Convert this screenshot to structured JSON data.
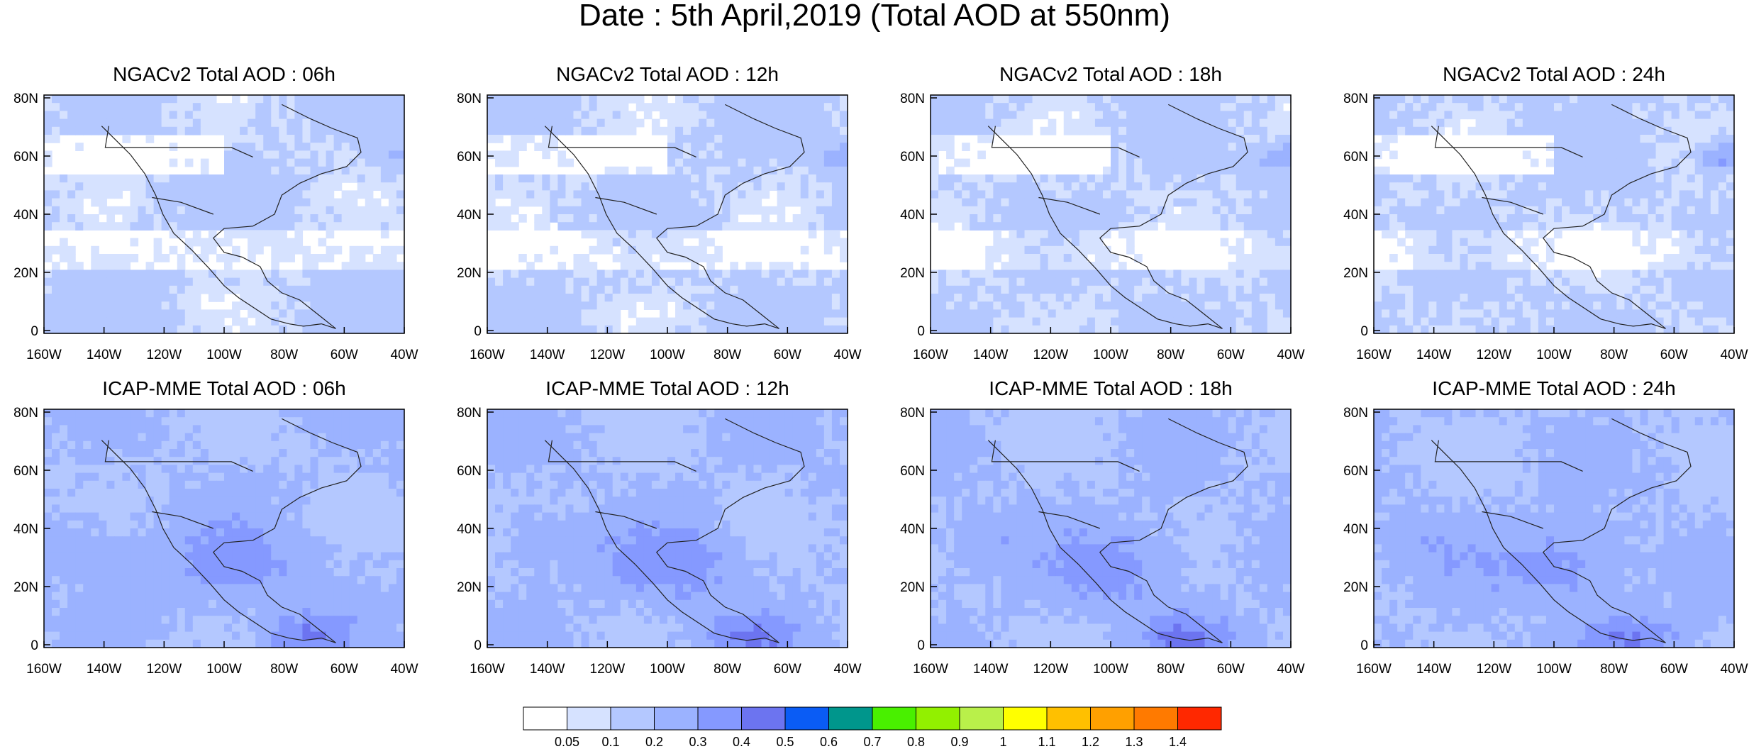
{
  "title": "Date : 5th April,2019 (Total AOD at 550nm)",
  "panels": [
    {
      "title": "NGACv2 Total AOD : 06h",
      "model": "NGACv2",
      "hour": "06h"
    },
    {
      "title": "NGACv2 Total AOD : 12h",
      "model": "NGACv2",
      "hour": "12h"
    },
    {
      "title": "NGACv2 Total AOD : 18h",
      "model": "NGACv2",
      "hour": "18h"
    },
    {
      "title": "NGACv2 Total AOD : 24h",
      "model": "NGACv2",
      "hour": "24h"
    },
    {
      "title": "ICAP-MME Total AOD : 06h",
      "model": "ICAP-MME",
      "hour": "06h"
    },
    {
      "title": "ICAP-MME Total AOD : 12h",
      "model": "ICAP-MME",
      "hour": "12h"
    },
    {
      "title": "ICAP-MME Total AOD : 18h",
      "model": "ICAP-MME",
      "hour": "18h"
    },
    {
      "title": "ICAP-MME Total AOD : 24h",
      "model": "ICAP-MME",
      "hour": "24h"
    }
  ],
  "lat_ticks": [
    "80N",
    "60N",
    "40N",
    "20N",
    "0"
  ],
  "lon_ticks": [
    "160W",
    "140W",
    "120W",
    "100W",
    "80W",
    "60W",
    "40W"
  ],
  "colorbar": {
    "labels": [
      "0.05",
      "0.1",
      "0.2",
      "0.3",
      "0.4",
      "0.5",
      "0.6",
      "0.7",
      "0.8",
      "0.9",
      "1",
      "1.1",
      "1.2",
      "1.3",
      "1.4"
    ],
    "colors": [
      "#ffffff",
      "#d6e2ff",
      "#b4c8ff",
      "#9bb2ff",
      "#8599ff",
      "#6c74f0",
      "#0a5cf5",
      "#00968c",
      "#49f000",
      "#92f000",
      "#b9f04a",
      "#ffff00",
      "#ffc000",
      "#ffa000",
      "#ff7a00",
      "#ff2800"
    ]
  }
}
